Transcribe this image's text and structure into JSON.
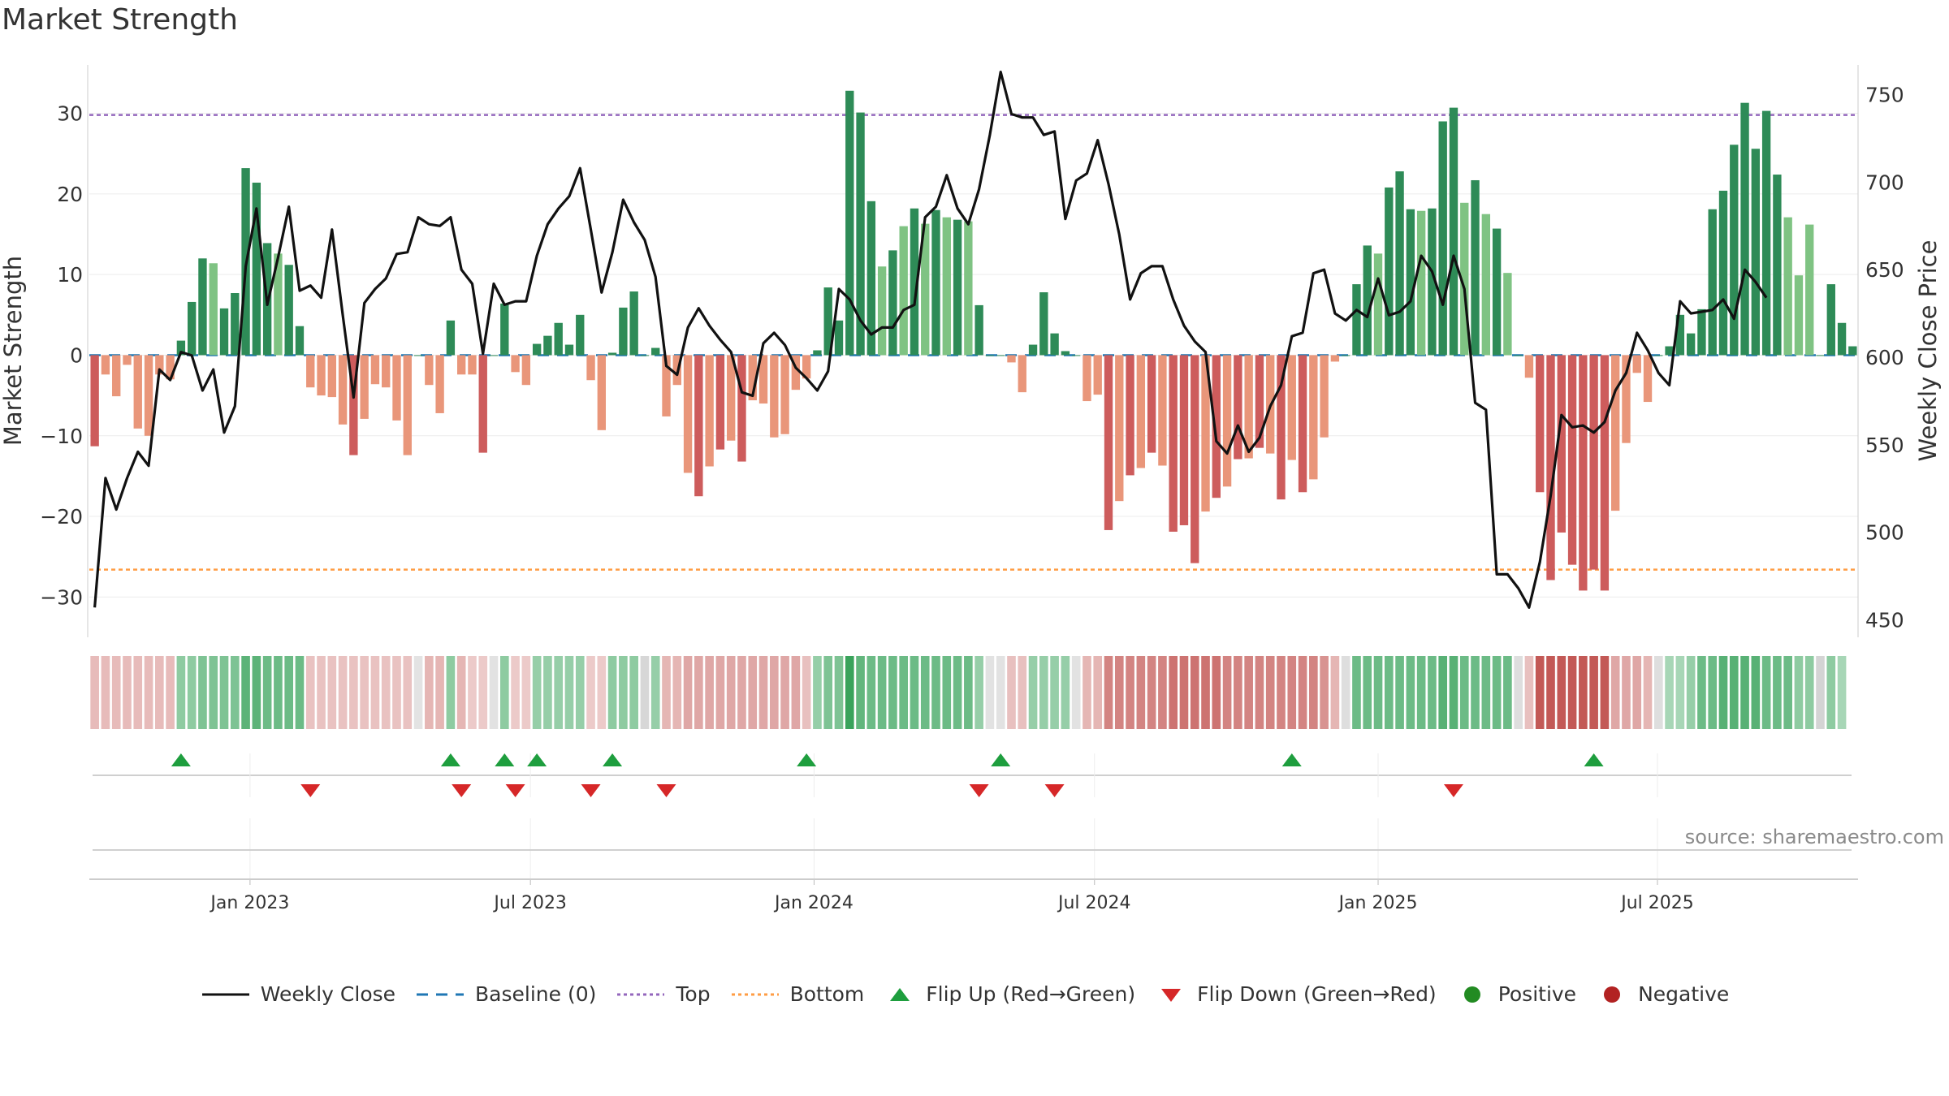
{
  "chart_data": {
    "type": "bar",
    "title": "Market Strength",
    "ylabel": "Market Strength",
    "y2label": "Weekly Close Price",
    "ylim": [
      -35,
      36
    ],
    "y2lim": [
      440,
      767
    ],
    "y_ticks": [
      30,
      20,
      10,
      0,
      -10,
      -20,
      -30
    ],
    "y_tick_labels": [
      "30",
      "20",
      "10",
      "0",
      "−10",
      "−20",
      "−30"
    ],
    "y2_ticks": [
      750,
      700,
      650,
      600,
      550,
      500,
      450
    ],
    "y2_tick_labels": [
      "750",
      "700",
      "650",
      "600",
      "550",
      "500",
      "450"
    ],
    "x_tick_labels": [
      "Jan 2023",
      "Jul 2023",
      "Jan 2024",
      "Jul 2024",
      "Jan 2025",
      "Jul 2025"
    ],
    "x_tick_weeks": [
      14.4,
      40.4,
      66.7,
      92.7,
      119,
      144.9
    ],
    "top_line": 29.8,
    "bottom_line": -26.6,
    "baseline": 0,
    "strength": [
      -11.3,
      -2.4,
      -5.1,
      -1.2,
      -9.1,
      -10,
      -2.4,
      -3,
      1.8,
      6.6,
      12,
      11.4,
      5.8,
      7.7,
      23.2,
      21.4,
      13.9,
      12.6,
      11.2,
      3.6,
      -4,
      -5,
      -5.2,
      -8.6,
      -12.4,
      -7.9,
      -3.6,
      -4,
      -8.1,
      -12.4,
      0,
      -3.7,
      -7.2,
      4.3,
      -2.4,
      -2.4,
      -12.1,
      0,
      6.4,
      -2.1,
      -3.7,
      1.4,
      2.4,
      4,
      1.3,
      5,
      -3.1,
      -9.3,
      0.3,
      5.9,
      7.9,
      0,
      0.9,
      -7.6,
      -3.7,
      -14.6,
      -17.5,
      -13.8,
      -11.7,
      -10.6,
      -13.2,
      -5.6,
      -6,
      -10.2,
      -9.8,
      -4.3,
      -2.9,
      0.6,
      8.4,
      4.3,
      32.8,
      30.1,
      19.1,
      11,
      13,
      16,
      18.2,
      16.3,
      18,
      17.1,
      16.8,
      16.6,
      6.2,
      0,
      0,
      -0.9,
      -4.6,
      1.3,
      7.8,
      2.7,
      0.5,
      0,
      -5.7,
      -4.9,
      -21.7,
      -18.1,
      -14.9,
      -14,
      -12.1,
      -13.7,
      -21.9,
      -21.1,
      -25.8,
      -19.4,
      -17.7,
      -16.3,
      -12.9,
      -12.8,
      -11.5,
      -12.2,
      -17.9,
      -13,
      -17,
      -15.4,
      -10.2,
      -0.8,
      0,
      8.8,
      13.6,
      12.6,
      20.8,
      22.8,
      18.1,
      17.9,
      18.2,
      29,
      30.7,
      18.9,
      21.7,
      17.5,
      15.7,
      10.2,
      0,
      -2.8,
      -17,
      -27.9,
      -22,
      -26,
      -29.2,
      -26.6,
      -29.2,
      -19.3,
      -10.9,
      -2.2,
      -5.8,
      0,
      1.1,
      5,
      2.7,
      5.7,
      18.1,
      20.4,
      26.1,
      31.3,
      25.6,
      30.3,
      22.4,
      17.1,
      9.9,
      16.2,
      0,
      8.8,
      4,
      1.1
    ],
    "weekly_close": [
      457,
      531,
      513,
      531,
      546,
      538,
      593,
      587,
      603,
      601,
      581,
      593,
      557,
      572,
      652,
      685,
      630,
      657,
      686,
      638,
      641,
      634,
      673,
      624,
      577,
      631,
      639,
      645,
      659,
      660,
      680,
      676,
      675,
      680,
      650,
      642,
      602,
      642,
      630,
      632,
      632,
      658,
      676,
      685,
      692,
      708,
      673,
      637,
      660,
      690,
      677,
      667,
      646,
      595,
      590,
      617,
      628,
      618,
      610,
      603,
      580,
      578,
      608,
      614,
      607,
      594,
      588,
      581,
      592,
      639,
      633,
      621,
      613,
      617,
      617,
      627,
      630,
      680,
      686,
      704,
      685,
      676,
      696,
      727,
      763,
      739,
      737,
      737,
      727,
      729,
      679,
      701,
      705,
      724,
      699,
      670,
      633,
      648,
      652,
      652,
      633,
      618,
      609,
      603,
      552,
      545,
      561,
      546,
      554,
      572,
      584,
      612,
      614,
      648,
      650,
      625,
      621,
      627,
      623,
      645,
      624,
      626,
      632,
      658,
      649,
      630,
      658,
      639,
      574,
      570,
      476,
      476,
      468,
      457,
      483,
      521,
      567,
      560,
      561,
      557,
      563,
      581,
      591,
      614,
      604,
      591,
      584,
      632,
      625,
      626,
      627,
      633,
      622,
      650,
      643,
      634
    ],
    "heat": [
      0.39,
      0.39,
      0.39,
      0.39,
      0.39,
      0.39,
      0.39,
      0.39,
      0.54,
      0.54,
      0.62,
      0.62,
      0.62,
      0.62,
      0.78,
      0.78,
      0.7,
      0.7,
      0.7,
      0.7,
      0.35,
      0.35,
      0.35,
      0.35,
      0.35,
      0.35,
      0.35,
      0.35,
      0.35,
      0.35,
      0.35,
      0.42,
      0.42,
      0.54,
      0.42,
      0.3,
      0.3,
      0.36,
      0.54,
      0.3,
      0.3,
      0.5,
      0.5,
      0.5,
      0.5,
      0.5,
      0.3,
      0.3,
      0.54,
      0.54,
      0.54,
      0.5,
      0.5,
      0.42,
      0.42,
      0.5,
      0.5,
      0.5,
      0.5,
      0.5,
      0.5,
      0.5,
      0.5,
      0.5,
      0.5,
      0.5,
      0.36,
      0.5,
      0.62,
      0.62,
      0.95,
      0.75,
      0.7,
      0.7,
      0.7,
      0.7,
      0.7,
      0.7,
      0.7,
      0.7,
      0.7,
      0.7,
      0.5,
      0.36,
      0.36,
      0.36,
      0.36,
      0.5,
      0.5,
      0.5,
      0.5,
      0.36,
      0.42,
      0.42,
      0.7,
      0.7,
      0.7,
      0.7,
      0.7,
      0.7,
      0.8,
      0.8,
      0.8,
      0.8,
      0.8,
      0.7,
      0.7,
      0.7,
      0.7,
      0.7,
      0.7,
      0.7,
      0.7,
      0.7,
      0.62,
      0.42,
      0.42,
      0.7,
      0.7,
      0.7,
      0.7,
      0.7,
      0.7,
      0.7,
      0.7,
      0.8,
      0.8,
      0.7,
      0.7,
      0.7,
      0.7,
      0.7,
      0.42,
      0.36,
      0.95,
      0.95,
      0.95,
      0.95,
      0.95,
      0.95,
      0.95,
      0.5,
      0.5,
      0.5,
      0.42,
      0.42,
      0.42,
      0.42,
      0.5,
      0.7,
      0.7,
      0.8,
      0.8,
      0.8,
      0.8,
      0.7,
      0.7,
      0.7,
      0.54,
      0.54,
      0.54,
      0.54,
      0.42
    ],
    "flip_up_weeks": [
      8,
      33,
      38,
      41,
      48,
      66,
      84,
      111,
      139
    ],
    "flip_down_weeks": [
      20,
      34,
      39,
      46,
      53,
      82,
      89,
      126
    ],
    "legend": [
      "Weekly Close",
      "Baseline (0)",
      "Top",
      "Bottom",
      "Flip Up (Red→Green)",
      "Flip Down (Green→Red)",
      "Positive",
      "Negative"
    ]
  },
  "colors": {
    "pos_dark": "#2e8b57",
    "pos_light": "#7fc383",
    "neg_dark": "#cd5c5c",
    "neg_light": "#e9967a",
    "close_line": "#111111",
    "baseline": "#1f77b4",
    "top": "#9467bd",
    "bottom": "#ff9d45",
    "flip_up": "#1e9e3e",
    "flip_down": "#d62728",
    "positive_dot": "#228b22",
    "negative_dot": "#b22222"
  },
  "source": "source: sharemaestro.com"
}
